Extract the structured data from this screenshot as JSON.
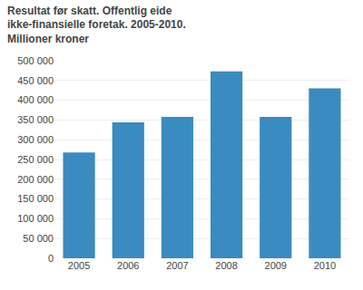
{
  "chart_data": {
    "type": "bar",
    "title": "Resultat før skatt. Offentlig eide ikke-finansielle foretak. 2005-2010.",
    "subtitle": "Millioner kroner",
    "categories": [
      "2005",
      "2006",
      "2007",
      "2008",
      "2009",
      "2010"
    ],
    "values": [
      268000,
      344000,
      358000,
      473000,
      358000,
      430000
    ],
    "color": "#3a8bbf",
    "ylim": [
      0,
      500000
    ],
    "yticks": [
      0,
      {
        "value": 50000,
        "label": "50 000"
      },
      {
        "value": 100000,
        "label": "100 000"
      },
      {
        "value": 150000,
        "label": "150 000"
      },
      {
        "value": 200000,
        "label": "200 000"
      },
      {
        "value": 250000,
        "label": "250 000"
      },
      {
        "value": 300000,
        "label": "300 000"
      },
      {
        "value": 350000,
        "label": "350 000"
      },
      {
        "value": 400000,
        "label": "400 000"
      },
      {
        "value": 450000,
        "label": "450 000"
      },
      {
        "value": 500000,
        "label": "500 000"
      }
    ],
    "grid": true
  }
}
